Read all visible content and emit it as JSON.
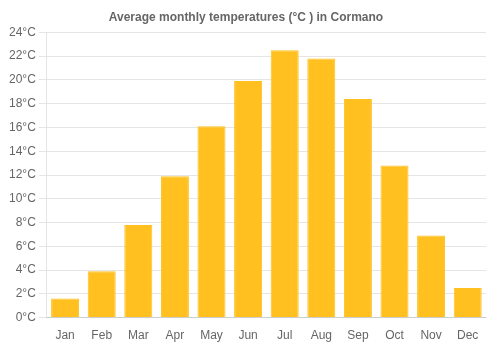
{
  "chart_data": {
    "type": "bar",
    "title": "Average monthly temperatures (°C ) in Cormano",
    "categories": [
      "Jan",
      "Feb",
      "Mar",
      "Apr",
      "May",
      "Jun",
      "Jul",
      "Aug",
      "Sep",
      "Oct",
      "Nov",
      "Dec"
    ],
    "values": [
      1.6,
      3.9,
      7.8,
      11.9,
      16.1,
      19.9,
      22.5,
      21.8,
      18.4,
      12.8,
      6.9,
      2.5
    ],
    "color": "#FFC020",
    "ylim": [
      0,
      24
    ],
    "yticks": [
      {
        "value": 0,
        "label": "0°C"
      },
      {
        "value": 2,
        "label": "2°C"
      },
      {
        "value": 4,
        "label": "4°C"
      },
      {
        "value": 6,
        "label": "6°C"
      },
      {
        "value": 8,
        "label": "8°C"
      },
      {
        "value": 10,
        "label": "10°C"
      },
      {
        "value": 12,
        "label": "12°C"
      },
      {
        "value": 14,
        "label": "14°C"
      },
      {
        "value": 16,
        "label": "16°C"
      },
      {
        "value": 18,
        "label": "18°C"
      },
      {
        "value": 20,
        "label": "20°C"
      },
      {
        "value": 22,
        "label": "22°C"
      },
      {
        "value": 24,
        "label": "24°C"
      }
    ],
    "grid": true
  }
}
